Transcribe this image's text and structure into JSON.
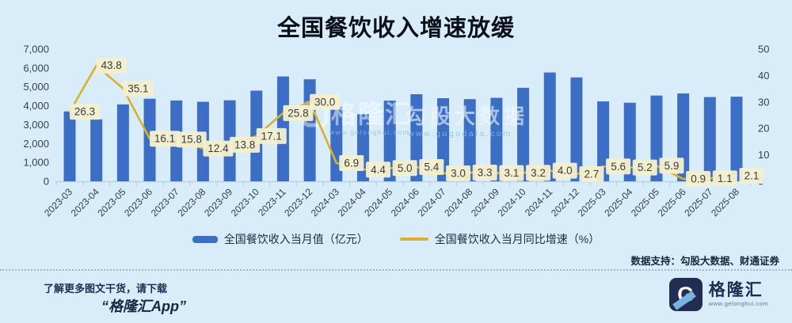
{
  "title": "全国餐饮收入增速放缓",
  "data_support": "数据支持：勾股大数据、财通证券",
  "watermarks": {
    "center_left": {
      "text": "格隆汇",
      "url": "www.gelonghui.com"
    },
    "center_right": {
      "text": "勾股大数据",
      "url": "www.gugudata.com"
    }
  },
  "footer": {
    "promo_line1": "了解更多图文干货，请下载",
    "promo_line2": "“格隆汇App”",
    "logo_letter": "G",
    "logo_name": "格隆汇",
    "logo_url": "www.gelonghui.com"
  },
  "chart_data": {
    "type": "bar+line combo",
    "title": "全国餐饮收入增速放缓",
    "categories": [
      "2023-03",
      "2023-04",
      "2023-05",
      "2023-06",
      "2023-07",
      "2023-08",
      "2023-09",
      "2023-10",
      "2023-11",
      "2023-12",
      "2024-03",
      "2024-04",
      "2024-05",
      "2024-06",
      "2024-07",
      "2024-08",
      "2024-09",
      "2024-10",
      "2024-11",
      "2024-12",
      "2025-03",
      "2025-04",
      "2025-05",
      "2025-06",
      "2025-07",
      "2025-08"
    ],
    "series": [
      {
        "name": "全国餐饮收入当月值（亿元）",
        "type": "bar",
        "axis": "left",
        "color": "#3d6ec5",
        "values_note": "bars unlabeled; values estimated from axis gridlines",
        "values": [
          3700,
          3280,
          4070,
          4370,
          4280,
          4210,
          4290,
          4800,
          5550,
          5400,
          3960,
          3550,
          4270,
          4610,
          4400,
          4350,
          4420,
          4950,
          5760,
          5500,
          4230,
          4160,
          4540,
          4650,
          4460,
          4480
        ]
      },
      {
        "name": "全国餐饮收入当月同比增速（%）",
        "type": "line",
        "axis": "right",
        "color": "#ddb02a",
        "label_box_color": "#f4efcf",
        "values": [
          26.3,
          43.8,
          35.1,
          16.1,
          15.8,
          12.4,
          13.8,
          17.1,
          25.8,
          30.0,
          6.9,
          4.4,
          5.0,
          5.4,
          3.0,
          3.3,
          3.1,
          3.2,
          4.0,
          2.7,
          5.6,
          5.2,
          5.9,
          0.9,
          1.1,
          2.1
        ]
      }
    ],
    "left_axis": {
      "min": 0,
      "max": 7000,
      "ticks": [
        "0",
        "1,000",
        "2,000",
        "3,000",
        "4,000",
        "5,000",
        "6,000",
        "7,000"
      ]
    },
    "right_axis": {
      "min": 0,
      "max": 50,
      "ticks": [
        "0",
        "10",
        "20",
        "30",
        "40",
        "50"
      ]
    },
    "grid": "off",
    "legend_position": "bottom",
    "background": "#d8edf9"
  }
}
